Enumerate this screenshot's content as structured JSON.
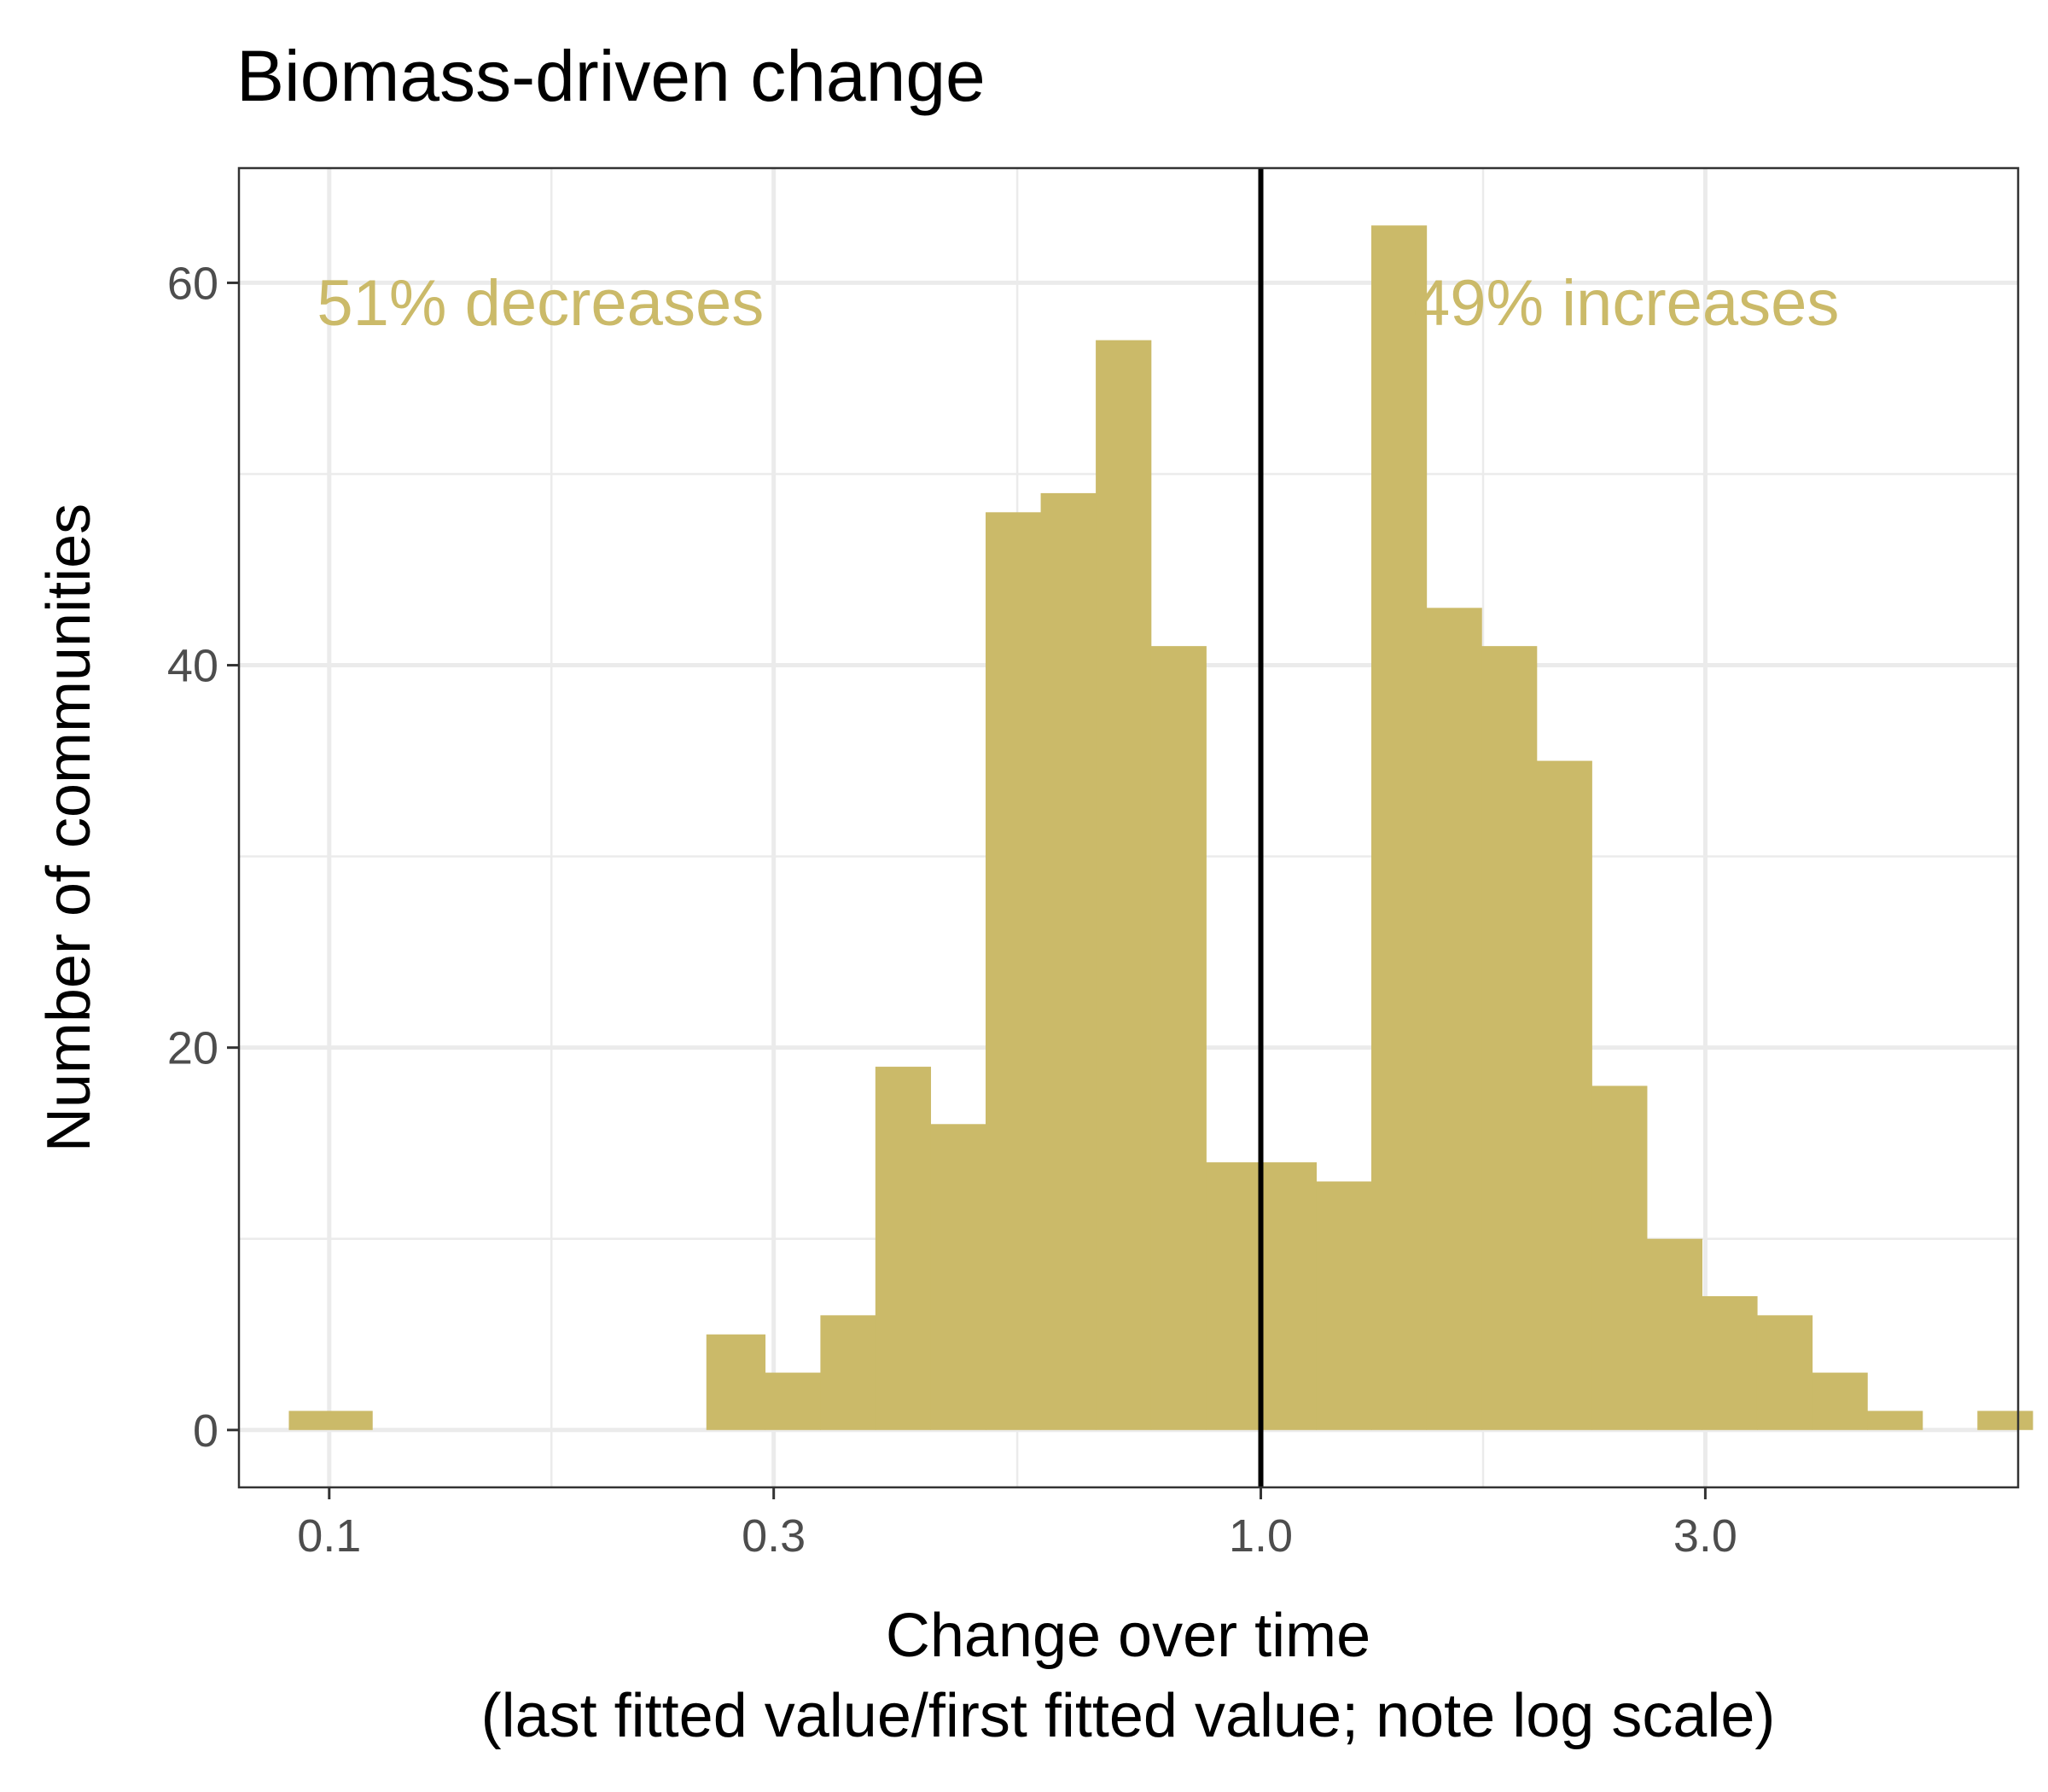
{
  "chart_data": {
    "type": "bar",
    "title": "Biomass-driven change",
    "xlabel_line1": "Change over time",
    "xlabel_line2": "(last fitted value/first fitted value; note log scale)",
    "ylabel": "Number of communities",
    "x_scale": "log",
    "xlim": [
      0.08,
      6.5
    ],
    "ylim": [
      -3,
      66
    ],
    "x_ticks": [
      0.1,
      0.3,
      1.0,
      3.0
    ],
    "x_tick_labels": [
      "0.1",
      "0.3",
      "1.0",
      "3.0"
    ],
    "x_minor_grid": [
      0.1732,
      0.5477,
      1.7321
    ],
    "y_ticks": [
      0,
      20,
      40,
      60
    ],
    "y_tick_labels": [
      "0",
      "20",
      "40",
      "60"
    ],
    "y_minor_grid": [
      10,
      30,
      50
    ],
    "grid": true,
    "reference_line_x": 1.0,
    "bar_color": "#cbba69",
    "annotations": [
      {
        "text": "51% decreases",
        "x": 0.097,
        "y": 59,
        "anchor": "start",
        "color": "#cbba69"
      },
      {
        "text": "49% increases",
        "x": 1.46,
        "y": 59,
        "anchor": "start",
        "color": "#cbba69"
      }
    ],
    "bins": [
      {
        "x0": 0.0905,
        "x1": 0.1112,
        "count": 1
      },
      {
        "x0": 0.1112,
        "x1": 0.1368,
        "count": 0
      },
      {
        "x0": 0.1368,
        "x1": 0.1681,
        "count": 0
      },
      {
        "x0": 0.1681,
        "x1": 0.2067,
        "count": 0
      },
      {
        "x0": 0.2067,
        "x1": 0.254,
        "count": 0
      },
      {
        "x0": 0.254,
        "x1": 0.2936,
        "count": 5
      },
      {
        "x0": 0.2936,
        "x1": 0.3367,
        "count": 3
      },
      {
        "x0": 0.3367,
        "x1": 0.3857,
        "count": 6
      },
      {
        "x0": 0.3857,
        "x1": 0.442,
        "count": 19
      },
      {
        "x0": 0.442,
        "x1": 0.5065,
        "count": 16
      },
      {
        "x0": 0.5065,
        "x1": 0.5804,
        "count": 48
      },
      {
        "x0": 0.5804,
        "x1": 0.665,
        "count": 49
      },
      {
        "x0": 0.665,
        "x1": 0.7621,
        "count": 57
      },
      {
        "x0": 0.7621,
        "x1": 0.8733,
        "count": 41
      },
      {
        "x0": 0.8733,
        "x1": 1.0007,
        "count": 14
      },
      {
        "x0": 1.0007,
        "x1": 1.1467,
        "count": 14
      },
      {
        "x0": 1.1467,
        "x1": 1.314,
        "count": 13
      },
      {
        "x0": 1.314,
        "x1": 1.5057,
        "count": 63
      },
      {
        "x0": 1.5057,
        "x1": 1.7254,
        "count": 43
      },
      {
        "x0": 1.7254,
        "x1": 1.9771,
        "count": 41
      },
      {
        "x0": 1.9771,
        "x1": 2.2656,
        "count": 35
      },
      {
        "x0": 2.2656,
        "x1": 2.5961,
        "count": 18
      },
      {
        "x0": 2.5961,
        "x1": 2.9749,
        "count": 10
      },
      {
        "x0": 2.9749,
        "x1": 3.4089,
        "count": 7
      },
      {
        "x0": 3.4089,
        "x1": 3.9062,
        "count": 6
      },
      {
        "x0": 3.9062,
        "x1": 4.4762,
        "count": 3
      },
      {
        "x0": 4.4762,
        "x1": 5.1292,
        "count": 1
      },
      {
        "x0": 5.1292,
        "x1": 5.8775,
        "count": 0
      },
      {
        "x0": 5.8775,
        "x1": 6.735,
        "count": 1
      }
    ]
  }
}
